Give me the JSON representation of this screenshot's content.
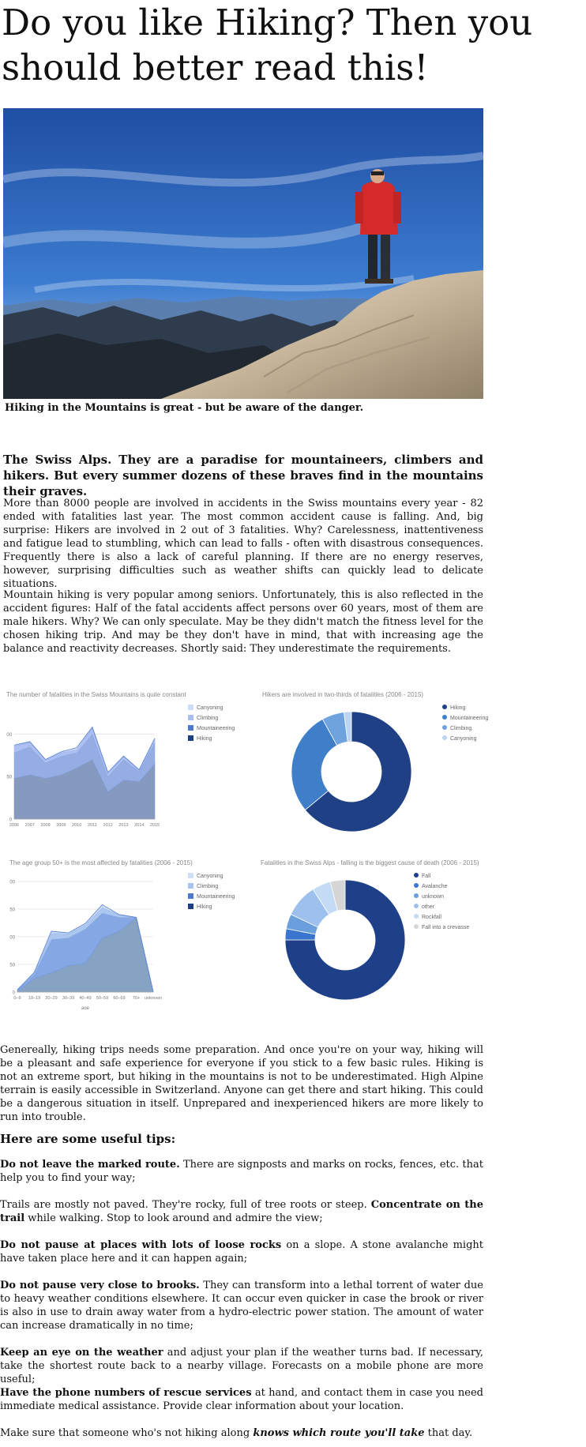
{
  "article": {
    "title": "Do you like Hiking? Then you should better read this!",
    "caption": "Hiking in the Mountains is great - but be aware of the danger.",
    "lead": "The Swiss Alps. They are a paradise for mountaineers, climbers and hikers. But every summer dozens of these braves find in the mountains their graves.",
    "p1": "More than 8000 people are involved in accidents in the Swiss mountains every year - 82 ended with fatalities last year. The most common accident cause is falling. And, big surprise: Hikers are involved in 2 out of 3 fatalities. Why? Carelessness, inattentiveness and fatigue lead to stumbling, which can lead to falls - often with disastrous consequences. Frequently there is also a lack of careful planning. If there are no energy reserves, however, surprising difficulties such as weather shifts can quickly lead to delicate situations.",
    "p2": "Mountain hiking is very popular among seniors. Unfortunately, this is also reflected in the accident figures: Half of the fatal accidents affect persons over 60 years, most of them are male hikers. Why? We can only speculate. May be they didn't match the fitness level for the chosen hiking trip. And may be they don't have in mind, that with increasing age the balance and reactivity decreases. Shortly said: They underestimate the requirements.",
    "p3": "Genereally, hiking trips needs some preparation. And once you're on your way, hiking will be a pleasant and safe experience for everyone if you stick to a few basic rules. Hiking is not an extreme sport, but hiking in the mountains is not to be underestimated. High Alpine terrain is easily accessible in Switzerland. Anyone can get there and start hiking. This could be a dangerous situation in itself. Unprepared and inexperienced hikers are more likely to run into trouble.",
    "tips_heading": "Here are some useful tips:",
    "tips": [
      {
        "bold": "Do not leave the marked route.",
        "text": " There are signposts and marks on rocks, fences, etc. that help you to find your way;"
      },
      {
        "pre": "Trails are mostly not paved. They're rocky, full of tree roots or steep. ",
        "bold": "Concentrate on the trail",
        "text": " while walking. Stop to look around and admire the view;"
      },
      {
        "bold": "Do not pause at places with lots of loose rocks",
        "text": " on a slope. A stone avalanche might have taken place here and it can happen again;"
      },
      {
        "bold": "Do not pause very close to brooks.",
        "text": " They can transform into a lethal torrent of water due to heavy weather conditions elsewhere. It can occur even quicker in case the brook or river is also in use to drain away water from a hydro-electric power station. The amount of water can increase dramatically in no time;"
      },
      {
        "bold": "Keep an eye on the weather",
        "text": " and adjust your plan if the weather turns bad. If necessary, take the shortest route back to a nearby village. Forecasts on a mobile phone are more useful;"
      },
      {
        "bold": "Have the phone numbers of rescue services",
        "text": " at hand, and contact them in case you need immediate medical assistance. Provide clear information about your location."
      },
      {
        "pre": "Make sure that someone who's not hiking along ",
        "italicbold": "knows which route you'll take",
        "text": " that day."
      }
    ]
  },
  "chart_data": [
    {
      "type": "area",
      "title": "The number of fatalities in the Swiss Mountains is quite constant",
      "categories": [
        "2006",
        "2007",
        "2008",
        "2009",
        "2010",
        "2011",
        "2012",
        "2013",
        "2014",
        "2015"
      ],
      "yticks": [
        "0",
        "50",
        "100"
      ],
      "ylim": [
        0,
        130
      ],
      "stacked": true,
      "series": [
        {
          "name": "Hiking",
          "color": "#7f94ba",
          "values": [
            48,
            52,
            48,
            52,
            60,
            70,
            32,
            46,
            44,
            65
          ]
        },
        {
          "name": "Mountaineering",
          "color": "#8fa9e0",
          "values": [
            30,
            33,
            18,
            22,
            18,
            30,
            18,
            24,
            12,
            25
          ]
        },
        {
          "name": "Climbing",
          "color": "#a9bdf0",
          "values": [
            8,
            6,
            4,
            4,
            4,
            8,
            4,
            4,
            2,
            4
          ]
        },
        {
          "name": "Canyoning",
          "color": "#cfdcf7",
          "values": [
            1,
            0,
            0,
            1,
            2,
            0,
            1,
            0,
            0,
            1
          ]
        }
      ],
      "legend": [
        "Canyoning",
        "Climbing",
        "Mountaineering",
        "Hiking"
      ],
      "legend_colors": [
        "#cfdcf7",
        "#a9bdf0",
        "#4f79cc",
        "#1d3f84"
      ]
    },
    {
      "type": "pie",
      "title": "Hikers are involved in two-thirds of fatalities (2006 - 2015)",
      "labels": [
        "Hiking",
        "Mountaineering",
        "Climbing",
        "Canyoning"
      ],
      "values": [
        64,
        28,
        6,
        2
      ],
      "colors": [
        "#1f4085",
        "#3f7fca",
        "#6fa3de",
        "#bcd3f3"
      ]
    },
    {
      "type": "area",
      "title": "The age group 50+ is the most affected by fatalities (2006 - 2015)",
      "categories": [
        "0–9",
        "10–19",
        "20–29",
        "30–39",
        "40–49",
        "50–59",
        "60–69",
        "70+",
        "unknown"
      ],
      "xlabel": "age",
      "yticks": [
        "0",
        "50",
        "100",
        "150",
        "200"
      ],
      "ylim": [
        0,
        200
      ],
      "stacked": true,
      "series": [
        {
          "name": "Hiking",
          "color": "#7f9ec0",
          "values": [
            2,
            25,
            35,
            48,
            52,
            98,
            110,
            135,
            0
          ]
        },
        {
          "name": "Mountaineering",
          "color": "#7ea3e3",
          "values": [
            2,
            8,
            60,
            50,
            62,
            45,
            25,
            0,
            0
          ]
        },
        {
          "name": "Climbing",
          "color": "#a8c4ee",
          "values": [
            0,
            2,
            12,
            8,
            8,
            10,
            5,
            0,
            0
          ]
        },
        {
          "name": "Canyoning",
          "color": "#cfe0f7",
          "values": [
            0,
            1,
            3,
            1,
            2,
            5,
            0,
            0,
            0
          ]
        }
      ],
      "legend": [
        "Canyoning",
        "Climbing",
        "Mountaineering",
        "Hiking"
      ],
      "legend_colors": [
        "#cfe0f7",
        "#a8c4ee",
        "#4f79cc",
        "#1d3f84"
      ]
    },
    {
      "type": "pie",
      "title": "Fatalities in the Swiss Alps - falling is the biggest cause of death (2006 - 2015)",
      "labels": [
        "Fall",
        "Avalanche",
        "unknown",
        "other",
        "Rockfall",
        "Fall into a crevasse"
      ],
      "values": [
        75,
        3,
        4,
        9,
        5,
        4
      ],
      "colors": [
        "#1e4088",
        "#3a76cf",
        "#6b9edd",
        "#9dc1ec",
        "#c3dbf5",
        "#d6d6d6"
      ]
    }
  ]
}
